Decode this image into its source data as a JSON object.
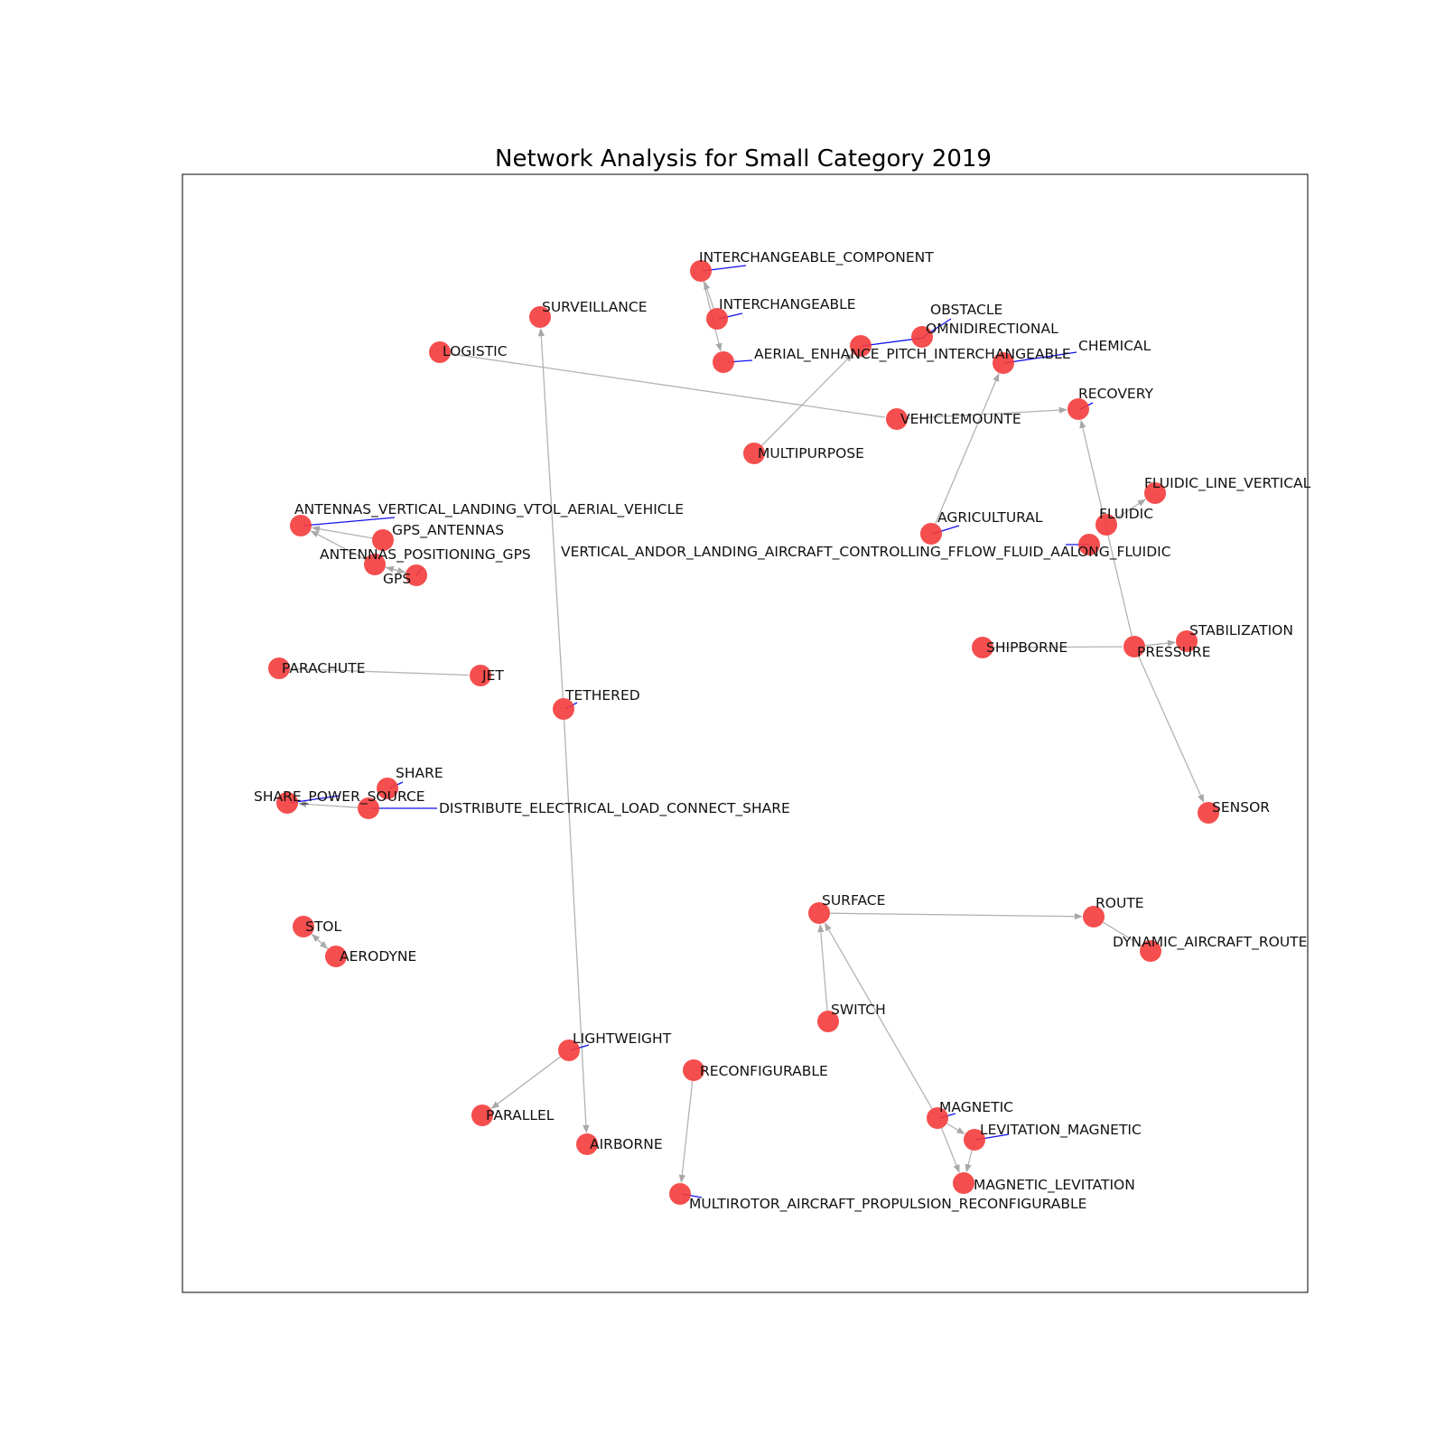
{
  "chart_data": {
    "type": "network",
    "title": "Network Analysis for Small Category 2019",
    "colors": {
      "node": "#f43b3b",
      "edge": "#b3b3b3",
      "label_leader": "#1010ee"
    },
    "nodes": [
      {
        "id": "INTERCHANGEABLE_COMPONENT",
        "label": "INTERCHANGEABLE_COMPONENT"
      },
      {
        "id": "INTERCHANGEABLE",
        "label": "INTERCHANGEABLE"
      },
      {
        "id": "AERIAL_ENHANCE_PITCH_INTERCHANGEABLE",
        "label": "AERIAL_ENHANCE_PITCH_INTERCHANGEABLE"
      },
      {
        "id": "SURVEILLANCE",
        "label": "SURVEILLANCE"
      },
      {
        "id": "LOGISTIC",
        "label": "LOGISTIC"
      },
      {
        "id": "OBSTACLE",
        "label": "OBSTACLE"
      },
      {
        "id": "OMNIDIRECTIONAL",
        "label": "OMNIDIRECTIONAL"
      },
      {
        "id": "CHEMICAL",
        "label": "CHEMICAL"
      },
      {
        "id": "RECOVERY",
        "label": "RECOVERY"
      },
      {
        "id": "VEHICLEMOUNTE",
        "label": "VEHICLEMOUNTE"
      },
      {
        "id": "MULTIPURPOSE",
        "label": "MULTIPURPOSE"
      },
      {
        "id": "FLUIDIC_LINE_VERTICAL",
        "label": "FLUIDIC_LINE_VERTICAL"
      },
      {
        "id": "FLUIDIC",
        "label": "FLUIDIC"
      },
      {
        "id": "AGRICULTURAL",
        "label": "AGRICULTURAL"
      },
      {
        "id": "VERTICAL_ANDOR_LANDING_AIRCRAFT_CONTROLLING_FFLOW_FLUID_AALONG_FLUIDIC",
        "label": "VERTICAL_ANDOR_LANDING_AIRCRAFT_CONTROLLING_FFLOW_FLUID_AALONG_FLUIDIC"
      },
      {
        "id": "ANTENNAS_VERTICAL_LANDING_VTOL_AERIAL_VEHICLE",
        "label": "ANTENNAS_VERTICAL_LANDING_VTOL_AERIAL_VEHICLE"
      },
      {
        "id": "GPS_ANTENNAS",
        "label": "GPS_ANTENNAS"
      },
      {
        "id": "ANTENNAS_POSITIONING_GPS",
        "label": "ANTENNAS_POSITIONING_GPS"
      },
      {
        "id": "GPS",
        "label": "GPS"
      },
      {
        "id": "STABILIZATION",
        "label": "STABILIZATION"
      },
      {
        "id": "SHIPBORNE",
        "label": "SHIPBORNE"
      },
      {
        "id": "PRESSURE",
        "label": "PRESSURE"
      },
      {
        "id": "PARACHUTE",
        "label": "PARACHUTE"
      },
      {
        "id": "JET",
        "label": "JET"
      },
      {
        "id": "TETHERED",
        "label": "TETHERED"
      },
      {
        "id": "SHARE",
        "label": "SHARE"
      },
      {
        "id": "SHARE_POWER_SOURCE",
        "label": "SHARE_POWER_SOURCE"
      },
      {
        "id": "DISTRIBUTE_ELECTRICAL_LOAD_CONNECT_SHARE",
        "label": "DISTRIBUTE_ELECTRICAL_LOAD_CONNECT_SHARE"
      },
      {
        "id": "SENSOR",
        "label": "SENSOR"
      },
      {
        "id": "SURFACE",
        "label": "SURFACE"
      },
      {
        "id": "ROUTE",
        "label": "ROUTE"
      },
      {
        "id": "DYNAMIC_AIRCRAFT_ROUTE",
        "label": "DYNAMIC_AIRCRAFT_ROUTE"
      },
      {
        "id": "STOL",
        "label": "STOL"
      },
      {
        "id": "AERODYNE",
        "label": "AERODYNE"
      },
      {
        "id": "SWITCH",
        "label": "SWITCH"
      },
      {
        "id": "LIGHTWEIGHT",
        "label": "LIGHTWEIGHT"
      },
      {
        "id": "RECONFIGURABLE",
        "label": "RECONFIGURABLE"
      },
      {
        "id": "PARALLEL",
        "label": "PARALLEL"
      },
      {
        "id": "AIRBORNE",
        "label": "AIRBORNE"
      },
      {
        "id": "MAGNETIC",
        "label": "MAGNETIC"
      },
      {
        "id": "LEVITATION_MAGNETIC",
        "label": "LEVITATION_MAGNETIC"
      },
      {
        "id": "MAGNETIC_LEVITATION",
        "label": "MAGNETIC_LEVITATION"
      },
      {
        "id": "MULTIROTOR_AIRCRAFT_PROPULSION_RECONFIGURABLE",
        "label": "MULTIROTOR_AIRCRAFT_PROPULSION_RECONFIGURABLE"
      }
    ],
    "edges": [
      {
        "source": "INTERCHANGEABLE_COMPONENT",
        "target": "AERIAL_ENHANCE_PITCH_INTERCHANGEABLE",
        "directed": true
      },
      {
        "source": "INTERCHANGEABLE",
        "target": "INTERCHANGEABLE_COMPONENT",
        "directed": true
      },
      {
        "source": "LOGISTIC",
        "target": "VEHICLEMOUNTE",
        "directed": false
      },
      {
        "source": "VEHICLEMOUNTE",
        "target": "RECOVERY",
        "directed": true
      },
      {
        "source": "MULTIPURPOSE",
        "target": "OBSTACLE",
        "directed": true
      },
      {
        "source": "AGRICULTURAL",
        "target": "CHEMICAL",
        "directed": true
      },
      {
        "source": "FLUIDIC",
        "target": "FLUIDIC_LINE_VERTICAL",
        "directed": true
      },
      {
        "source": "PRESSURE",
        "target": "RECOVERY",
        "directed": true
      },
      {
        "source": "PRESSURE",
        "target": "SENSOR",
        "directed": true
      },
      {
        "source": "PRESSURE",
        "target": "STABILIZATION",
        "directed": true
      },
      {
        "source": "SHIPBORNE",
        "target": "PRESSURE",
        "directed": false
      },
      {
        "source": "GPS_ANTENNAS",
        "target": "ANTENNAS_VERTICAL_LANDING_VTOL_AERIAL_VEHICLE",
        "directed": true
      },
      {
        "source": "ANTENNAS_POSITIONING_GPS",
        "target": "ANTENNAS_VERTICAL_LANDING_VTOL_AERIAL_VEHICLE",
        "directed": true
      },
      {
        "source": "ANTENNAS_POSITIONING_GPS",
        "target": "GPS",
        "directed": true
      },
      {
        "source": "GPS",
        "target": "ANTENNAS_POSITIONING_GPS",
        "directed": true
      },
      {
        "source": "PARACHUTE",
        "target": "JET",
        "directed": false
      },
      {
        "source": "TETHERED",
        "target": "SURVEILLANCE",
        "directed": true
      },
      {
        "source": "TETHERED",
        "target": "AIRBORNE",
        "directed": true
      },
      {
        "source": "DISTRIBUTE_ELECTRICAL_LOAD_CONNECT_SHARE",
        "target": "SHARE_POWER_SOURCE",
        "directed": true
      },
      {
        "source": "STOL",
        "target": "AERODYNE",
        "directed": true
      },
      {
        "source": "AERODYNE",
        "target": "STOL",
        "directed": true
      },
      {
        "source": "SURFACE",
        "target": "ROUTE",
        "directed": true
      },
      {
        "source": "ROUTE",
        "target": "DYNAMIC_AIRCRAFT_ROUTE",
        "directed": false
      },
      {
        "source": "SWITCH",
        "target": "SURFACE",
        "directed": true
      },
      {
        "source": "MAGNETIC",
        "target": "SURFACE",
        "directed": true
      },
      {
        "source": "MAGNETIC",
        "target": "LEVITATION_MAGNETIC",
        "directed": true
      },
      {
        "source": "MAGNETIC",
        "target": "MAGNETIC_LEVITATION",
        "directed": true
      },
      {
        "source": "LEVITATION_MAGNETIC",
        "target": "MAGNETIC_LEVITATION",
        "directed": true
      },
      {
        "source": "LIGHTWEIGHT",
        "target": "PARALLEL",
        "directed": true
      },
      {
        "source": "RECONFIGURABLE",
        "target": "MULTIROTOR_AIRCRAFT_PROPULSION_RECONFIGURABLE",
        "directed": true
      }
    ]
  }
}
